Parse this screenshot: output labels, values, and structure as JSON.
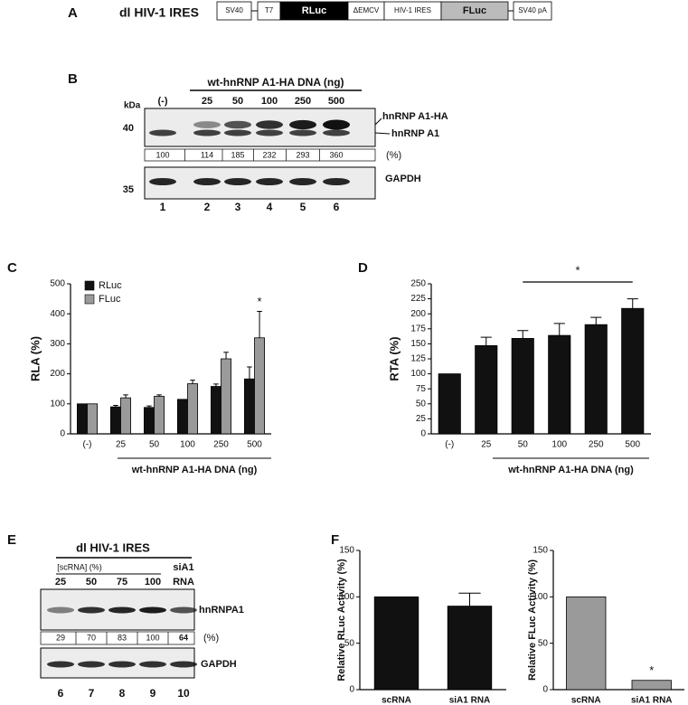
{
  "figure": {
    "panels": [
      "A",
      "B",
      "C",
      "D",
      "E",
      "F"
    ],
    "construct": {
      "title": "dl HIV-1 IRES",
      "elements": [
        "SV40",
        "T7",
        "RLuc",
        "ΔEMCV",
        "HIV-1 IRES",
        "FLuc",
        "SV40 pA"
      ]
    },
    "blot_b": {
      "header": "wt-hnRNP A1-HA DNA (ng)",
      "kda": "kDa",
      "lanes": [
        "(-)",
        "25",
        "50",
        "100",
        "250",
        "500"
      ],
      "markers": [
        "40",
        "35"
      ],
      "band_labels": [
        "hnRNP A1-HA",
        "hnRNP A1"
      ],
      "quant": [
        100,
        114,
        185,
        232,
        293,
        360
      ],
      "quant_unit": "(%)",
      "loading": "GAPDH",
      "lane_numbers": [
        "1",
        "2",
        "3",
        "4",
        "5",
        "6"
      ]
    },
    "blot_e": {
      "title": "dl HIV-1 IRES",
      "group": "[scRNA] (%)",
      "lanes": [
        "25",
        "50",
        "75",
        "100"
      ],
      "si_label": [
        "siA1",
        "RNA"
      ],
      "band_label": "hnRNPA1",
      "quant": [
        29,
        70,
        83,
        100,
        64
      ],
      "quant_unit": "(%)",
      "loading": "GAPDH",
      "lane_numbers": [
        "6",
        "7",
        "8",
        "9",
        "10"
      ]
    }
  },
  "chart_data": [
    {
      "type": "bar",
      "ylabel": "RLA (%)",
      "xlabel": "wt-hnRNP A1-HA DNA (ng)",
      "categories": [
        "(-)",
        "25",
        "50",
        "100",
        "250",
        "500"
      ],
      "series": [
        {
          "name": "RLuc",
          "color": "#111111",
          "values": [
            100,
            90,
            88,
            115,
            158,
            183
          ],
          "errors": [
            null,
            5,
            5,
            null,
            8,
            40
          ]
        },
        {
          "name": "FLuc",
          "color": "#9a9a9a",
          "values": [
            100,
            120,
            125,
            167,
            250,
            320
          ],
          "errors": [
            null,
            10,
            5,
            12,
            22,
            88
          ]
        }
      ],
      "ylim": [
        0,
        500
      ],
      "yticks": [
        0,
        100,
        200,
        300,
        400,
        500
      ],
      "annotation": "*",
      "legend": "upper left"
    },
    {
      "type": "bar",
      "ylabel": "RTA (%)",
      "xlabel": "wt-hnRNP A1-HA DNA (ng)",
      "categories": [
        "(-)",
        "25",
        "50",
        "100",
        "250",
        "500"
      ],
      "color": "#111111",
      "values": [
        100,
        147,
        159,
        164,
        182,
        209
      ],
      "errors": [
        null,
        14,
        13,
        20,
        12,
        16
      ],
      "ylim": [
        0,
        250
      ],
      "yticks": [
        0,
        25,
        50,
        75,
        100,
        125,
        150,
        175,
        200,
        225,
        250
      ],
      "annotation": "*"
    },
    {
      "type": "bar",
      "ylabel": "Relative RLuc Activity (%)",
      "categories": [
        "scRNA",
        "siA1 RNA"
      ],
      "color": "#111111",
      "values": [
        100,
        90
      ],
      "errors": [
        null,
        14
      ],
      "ylim": [
        0,
        150
      ],
      "yticks": [
        0,
        50,
        100,
        150
      ]
    },
    {
      "type": "bar",
      "ylabel": "Relative FLuc Activity (%)",
      "categories": [
        "scRNA",
        "siA1 RNA"
      ],
      "color": "#9a9a9a",
      "values": [
        100,
        10
      ],
      "ylim": [
        0,
        150
      ],
      "yticks": [
        0,
        50,
        100,
        150
      ],
      "annotation": "*"
    }
  ]
}
